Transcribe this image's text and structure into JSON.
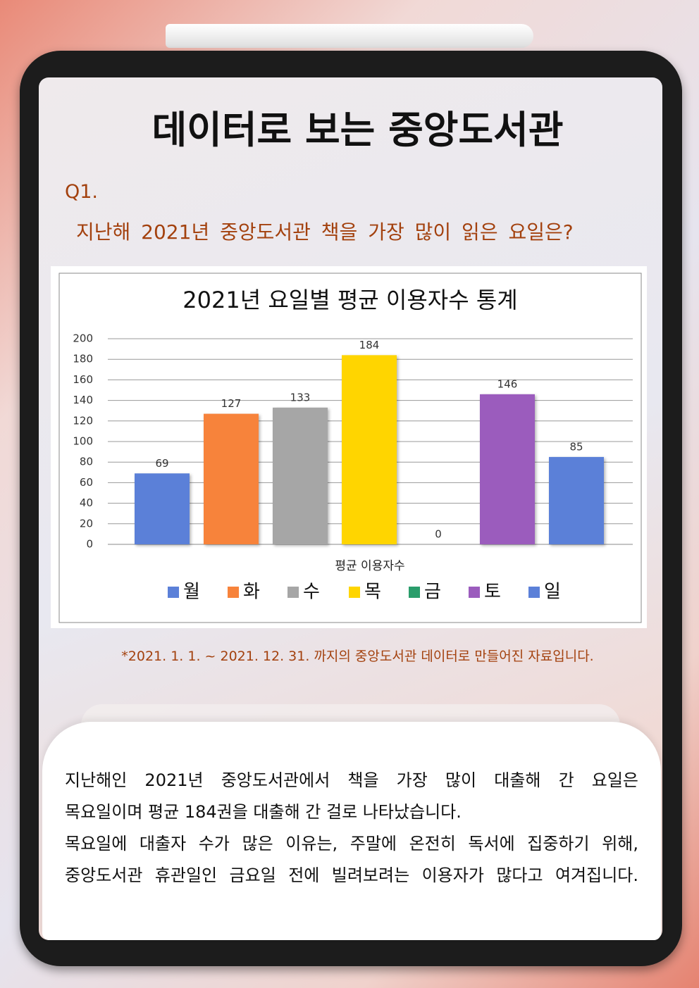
{
  "header": {
    "title": "데이터로 보는 중앙도서관"
  },
  "question": {
    "number": "Q1.",
    "text": "지난해 2021년 중앙도서관 책을 가장 많이 읽은 요일은?"
  },
  "chart_data": {
    "type": "bar",
    "title": "2021년 요일별 평균 이용자수 통계",
    "x_label": "평균 이용자수",
    "categories": [
      "월",
      "화",
      "수",
      "목",
      "금",
      "토",
      "일"
    ],
    "values": [
      69,
      127,
      133,
      184,
      0,
      146,
      85
    ],
    "colors": [
      "#5b80d8",
      "#f7833b",
      "#a6a6a6",
      "#ffd500",
      "#2a9d6b",
      "#9b5cbd",
      "#5b80d8"
    ],
    "ylim": [
      0,
      200
    ],
    "yticks": [
      0,
      20,
      40,
      60,
      80,
      100,
      120,
      140,
      160,
      180,
      200
    ],
    "grid": true,
    "legend": "bottom"
  },
  "footnote": "*2021. 1. 1. ~ 2021. 12. 31. 까지의 중앙도서관 데이터로 만들어진 자료입니다.",
  "body": {
    "lines": [
      "지난해인 2021년 중앙도서관에서 책을 가장 많이 대출해 간 요일은",
      "목요일이며 평균 184권을 대출해 간 걸로 나타났습니다.",
      "목요일에 대출자 수가 많은 이유는, 주말에 온전히 독서에 집중하기 위해,",
      "중앙도서관 휴관일인 금요일 전에 빌려보려는 이용자가 많다고 여겨집니다."
    ]
  }
}
